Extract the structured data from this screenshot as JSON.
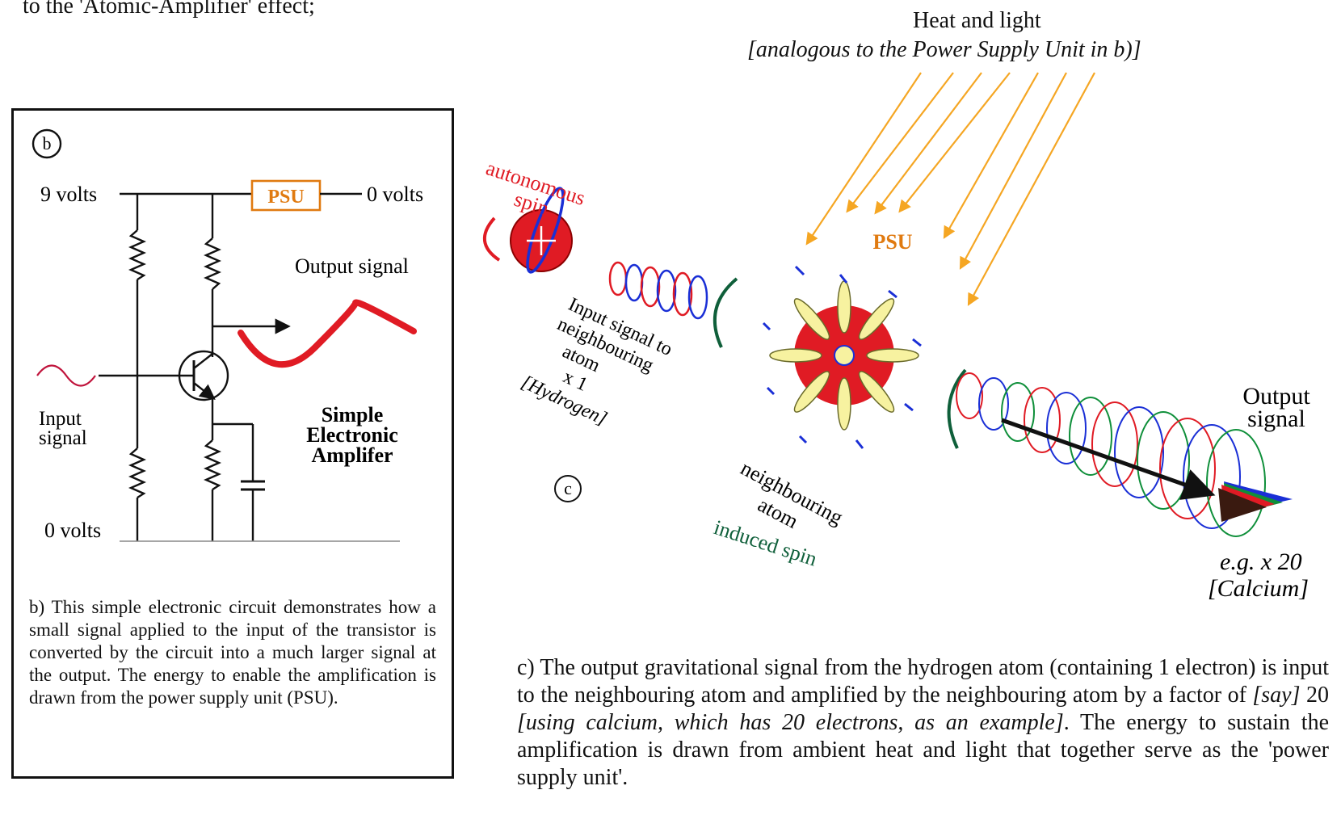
{
  "header": {
    "intro_tail": "to the 'Atomic-Amplifier' effect;"
  },
  "heat": {
    "title": "Heat and light",
    "subtitle": "[analogous to the Power Supply Unit in b)]"
  },
  "panel_b": {
    "marker": "b",
    "nine_volts": "9 volts",
    "psu": "PSU",
    "zero_volts_right": "0 volts",
    "output_signal": "Output signal",
    "input_signal_1": "Input",
    "input_signal_2": "signal",
    "amp_line1": "Simple",
    "amp_line2": "Electronic",
    "amp_line3": "Amplifer",
    "zero_volts_bottom": "0 volts",
    "caption": "b) This simple electronic circuit demonstrates how a small signal applied to the input of the transistor is converted by the circuit into a much larger signal at the output. The energy to enable the amplification is drawn from the power supply unit (PSU)."
  },
  "panel_c": {
    "marker": "c",
    "autonomous_1": "autonomous",
    "autonomous_2": "spin",
    "psu": "PSU",
    "input_l1": "Input signal to",
    "input_l2": "neighbouring",
    "input_l3": "atom",
    "input_l4": "x 1",
    "input_l5": "[Hydrogen]",
    "neigh_l1": "neighbouring",
    "neigh_l2": "atom",
    "induced": "induced spin",
    "output_l1": "Output",
    "output_l2": "signal",
    "eg": "e.g. x 20",
    "calcium": "[Calcium]",
    "caption_1": "c) The output gravitational signal from the hydrogen atom (containing 1 electron) is input to the neighbouring atom and amplified by the neighbouring atom by a factor of ",
    "caption_2": "[say]",
    "caption_3": " 20 ",
    "caption_4": "[using calcium, which has 20 electrons, as an example]",
    "caption_5": ". The energy to sustain the amplification is drawn from ambient heat and light that together serve as the 'power supply unit'."
  },
  "colors": {
    "red": "#e01b24",
    "blue": "#1a2fd6",
    "green": "#0f5f3a",
    "orange": "#f5a623",
    "yellow": "#f7f2a0",
    "psu_text": "#e07a10",
    "input_wave": "#c0143c"
  }
}
